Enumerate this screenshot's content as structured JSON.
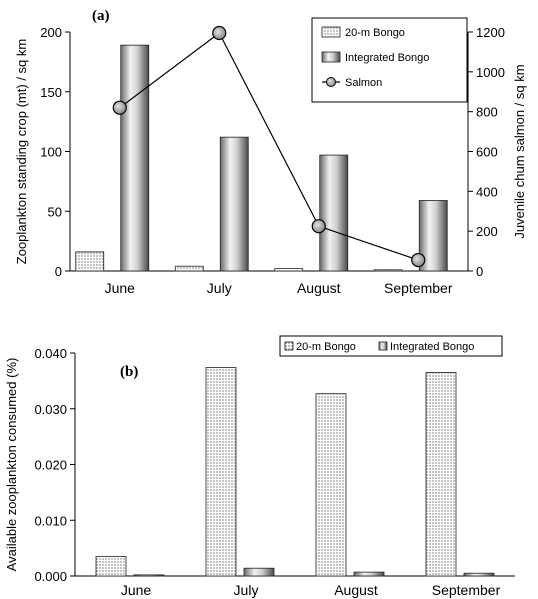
{
  "chart_data": [
    {
      "type": "bar",
      "panel_label": "(a)",
      "categories": [
        "June",
        "July",
        "August",
        "September"
      ],
      "series": [
        {
          "name": "20-m Bongo",
          "values": [
            16,
            4,
            2,
            1
          ],
          "axis": "left",
          "pattern": "dotted"
        },
        {
          "name": "Integrated Bongo",
          "values": [
            189,
            112,
            97,
            59
          ],
          "axis": "left",
          "pattern": "grey-cylinder"
        },
        {
          "name": "Salmon",
          "values": [
            820,
            1195,
            225,
            55
          ],
          "axis": "right",
          "kind": "line-marker"
        }
      ],
      "ylabel": "Zooplankton standing crop (mt) / sq km",
      "ylabel_right": "Juvenile chum salmon / sq km",
      "ylim": [
        0,
        200
      ],
      "yticks": [
        "0",
        "50",
        "100",
        "150",
        "200"
      ],
      "ylim_right": [
        0,
        1200
      ],
      "yticks_right": [
        "0",
        "200",
        "400",
        "600",
        "800",
        "1000",
        "1200"
      ],
      "legend_placement": "top-right, boxed, vertical",
      "grid": false
    },
    {
      "type": "bar",
      "panel_label": "(b)",
      "categories": [
        "June",
        "July",
        "August",
        "September"
      ],
      "series": [
        {
          "name": "20-m Bongo",
          "values": [
            0.0035,
            0.0374,
            0.0327,
            0.0365
          ],
          "pattern": "dotted"
        },
        {
          "name": "Integrated Bongo",
          "values": [
            0.0002,
            0.0014,
            0.0007,
            0.0005
          ],
          "pattern": "grey-cylinder"
        }
      ],
      "ylabel": "Available zooplankton consumed (%)",
      "ylim": [
        0,
        0.04
      ],
      "yticks": [
        "0.000",
        "0.010",
        "0.020",
        "0.030",
        "0.040"
      ],
      "legend_placement": "top-right, boxed, horizontal",
      "grid": false
    }
  ]
}
